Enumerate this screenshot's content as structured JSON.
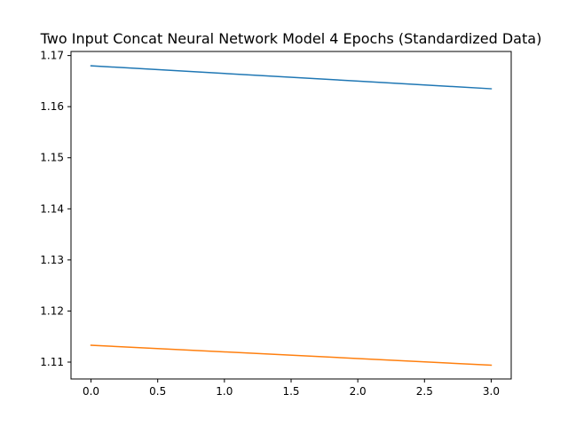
{
  "chart_data": {
    "type": "line",
    "title": "Two Input Concat Neural Network Model 4 Epochs (Standardized Data)",
    "xlabel": "",
    "ylabel": "",
    "x": [
      0,
      1,
      2,
      3
    ],
    "series": [
      {
        "color": "#1f77b4",
        "values": [
          1.168,
          1.1665,
          1.165,
          1.1635
        ]
      },
      {
        "color": "#ff7f0e",
        "values": [
          1.1133,
          1.112,
          1.1107,
          1.1094
        ]
      }
    ],
    "xlim": [
      -0.15,
      3.15
    ],
    "ylim": [
      1.1067,
      1.1708
    ],
    "xticks": [
      0.0,
      0.5,
      1.0,
      1.5,
      2.0,
      2.5,
      3.0
    ],
    "xtick_labels": [
      "0.0",
      "0.5",
      "1.0",
      "1.5",
      "2.0",
      "2.5",
      "3.0"
    ],
    "yticks": [
      1.11,
      1.12,
      1.13,
      1.14,
      1.15,
      1.16,
      1.17
    ],
    "ytick_labels": [
      "1.11",
      "1.12",
      "1.13",
      "1.14",
      "1.15",
      "1.16",
      "1.17"
    ],
    "grid": false,
    "legend": "none"
  }
}
